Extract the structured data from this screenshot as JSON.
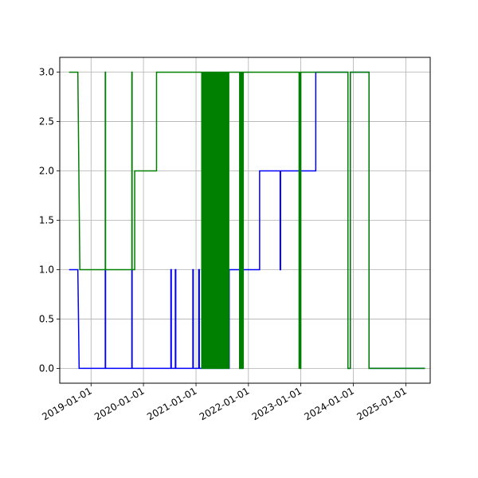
{
  "chart_data": {
    "type": "line",
    "title": "",
    "xlabel": "",
    "ylabel": "",
    "x_axis_type": "date",
    "xlim": [
      "2018-05-28",
      "2025-06-20"
    ],
    "ylim": [
      -0.15,
      3.15
    ],
    "grid": true,
    "legend": "none",
    "x_ticks": [
      "2019-01-01",
      "2020-01-01",
      "2021-01-01",
      "2022-01-01",
      "2023-01-01",
      "2024-01-01",
      "2025-01-01"
    ],
    "y_ticks": [
      "0.0",
      "0.5",
      "1.0",
      "1.5",
      "2.0",
      "2.5",
      "3.0"
    ],
    "series": [
      {
        "color": "#0000ff",
        "points": [
          [
            "2018-08-01",
            1
          ],
          [
            "2018-10-01",
            1
          ],
          [
            "2018-10-10",
            0
          ],
          [
            "2019-04-10",
            0
          ],
          [
            "2019-04-10",
            1
          ],
          [
            "2019-04-12",
            1
          ],
          [
            "2019-04-12",
            0
          ],
          [
            "2019-10-12",
            0
          ],
          [
            "2019-10-12",
            1
          ],
          [
            "2019-10-14",
            1
          ],
          [
            "2019-10-14",
            0
          ],
          [
            "2020-07-10",
            0
          ],
          [
            "2020-07-10",
            1
          ],
          [
            "2020-07-13",
            1
          ],
          [
            "2020-07-13",
            0
          ],
          [
            "2020-08-10",
            0
          ],
          [
            "2020-08-10",
            1
          ],
          [
            "2020-08-13",
            1
          ],
          [
            "2020-08-13",
            0
          ],
          [
            "2020-12-10",
            0
          ],
          [
            "2020-12-10",
            1
          ],
          [
            "2020-12-13",
            1
          ],
          [
            "2020-12-13",
            0
          ],
          [
            "2021-01-20",
            0
          ],
          [
            "2021-01-20",
            1
          ],
          [
            "2021-01-24",
            1
          ],
          [
            "2021-01-24",
            0
          ],
          [
            "2021-06-20",
            0
          ],
          [
            "2021-06-20",
            1
          ],
          [
            "2021-06-23",
            1
          ],
          [
            "2021-06-23",
            0
          ],
          [
            "2021-08-20",
            0
          ],
          [
            "2021-08-20",
            1
          ],
          [
            "2021-11-01",
            1
          ],
          [
            "2021-11-01",
            0
          ],
          [
            "2021-11-05",
            0
          ],
          [
            "2021-11-05",
            1
          ],
          [
            "2021-11-15",
            1
          ],
          [
            "2021-11-15",
            0
          ],
          [
            "2021-11-20",
            0
          ],
          [
            "2021-11-20",
            1
          ],
          [
            "2022-03-20",
            1
          ],
          [
            "2022-03-20",
            2
          ],
          [
            "2022-08-10",
            2
          ],
          [
            "2022-08-10",
            1
          ],
          [
            "2022-08-13",
            1
          ],
          [
            "2022-08-13",
            2
          ],
          [
            "2023-04-15",
            2
          ],
          [
            "2023-04-15",
            3
          ],
          [
            "2023-11-25",
            3
          ],
          [
            "2023-11-25",
            0
          ],
          [
            "2023-12-12",
            0
          ],
          [
            "2023-12-12",
            3
          ],
          [
            "2024-04-20",
            3
          ],
          [
            "2024-04-20",
            0
          ],
          [
            "2025-05-15",
            0
          ]
        ]
      },
      {
        "color": "#008000",
        "points": [
          [
            "2018-08-01",
            3
          ],
          [
            "2018-10-01",
            3
          ],
          [
            "2018-10-15",
            1
          ],
          [
            "2019-04-10",
            1
          ],
          [
            "2019-04-10",
            3
          ],
          [
            "2019-04-12",
            3
          ],
          [
            "2019-04-12",
            1
          ],
          [
            "2019-10-12",
            1
          ],
          [
            "2019-10-12",
            3
          ],
          [
            "2019-10-14",
            3
          ],
          [
            "2019-10-14",
            1
          ],
          [
            "2019-11-01",
            1
          ],
          [
            "2019-11-01",
            2
          ],
          [
            "2020-04-01",
            2
          ],
          [
            "2020-04-01",
            3
          ],
          [
            "2021-02-10",
            3
          ],
          [
            "2021-02-10",
            0
          ],
          [
            "2021-02-14",
            0
          ],
          [
            "2021-02-14",
            3
          ],
          [
            "2021-02-18",
            3
          ],
          [
            "2021-02-18",
            0
          ],
          [
            "2021-02-22",
            0
          ],
          [
            "2021-02-22",
            3
          ],
          [
            "2021-02-26",
            3
          ],
          [
            "2021-02-26",
            0
          ],
          [
            "2021-03-02",
            0
          ],
          [
            "2021-03-02",
            3
          ],
          [
            "2021-03-06",
            3
          ],
          [
            "2021-03-06",
            0
          ],
          [
            "2021-03-10",
            0
          ],
          [
            "2021-03-10",
            3
          ],
          [
            "2021-03-14",
            3
          ],
          [
            "2021-03-14",
            0
          ],
          [
            "2021-03-18",
            0
          ],
          [
            "2021-03-18",
            3
          ],
          [
            "2021-03-22",
            3
          ],
          [
            "2021-03-22",
            0
          ],
          [
            "2021-03-26",
            0
          ],
          [
            "2021-03-26",
            3
          ],
          [
            "2021-03-30",
            3
          ],
          [
            "2021-03-30",
            0
          ],
          [
            "2021-04-03",
            0
          ],
          [
            "2021-04-03",
            3
          ],
          [
            "2021-04-07",
            3
          ],
          [
            "2021-04-07",
            0
          ],
          [
            "2021-04-11",
            0
          ],
          [
            "2021-04-11",
            3
          ],
          [
            "2021-04-15",
            3
          ],
          [
            "2021-04-15",
            0
          ],
          [
            "2021-04-19",
            0
          ],
          [
            "2021-04-19",
            3
          ],
          [
            "2021-04-23",
            3
          ],
          [
            "2021-04-23",
            0
          ],
          [
            "2021-04-27",
            0
          ],
          [
            "2021-04-27",
            3
          ],
          [
            "2021-05-01",
            3
          ],
          [
            "2021-05-01",
            0
          ],
          [
            "2021-05-05",
            0
          ],
          [
            "2021-05-05",
            3
          ],
          [
            "2021-05-09",
            3
          ],
          [
            "2021-05-09",
            0
          ],
          [
            "2021-05-13",
            0
          ],
          [
            "2021-05-13",
            3
          ],
          [
            "2021-05-17",
            3
          ],
          [
            "2021-05-17",
            0
          ],
          [
            "2021-05-21",
            0
          ],
          [
            "2021-05-21",
            3
          ],
          [
            "2021-05-25",
            3
          ],
          [
            "2021-05-25",
            0
          ],
          [
            "2021-05-29",
            0
          ],
          [
            "2021-05-29",
            3
          ],
          [
            "2021-06-02",
            3
          ],
          [
            "2021-06-02",
            0
          ],
          [
            "2021-06-06",
            0
          ],
          [
            "2021-06-06",
            3
          ],
          [
            "2021-06-10",
            3
          ],
          [
            "2021-06-10",
            0
          ],
          [
            "2021-06-14",
            0
          ],
          [
            "2021-06-14",
            3
          ],
          [
            "2021-06-18",
            3
          ],
          [
            "2021-06-18",
            0
          ],
          [
            "2021-06-22",
            0
          ],
          [
            "2021-06-22",
            3
          ],
          [
            "2021-06-26",
            3
          ],
          [
            "2021-06-26",
            0
          ],
          [
            "2021-06-30",
            0
          ],
          [
            "2021-06-30",
            3
          ],
          [
            "2021-07-04",
            3
          ],
          [
            "2021-07-04",
            0
          ],
          [
            "2021-07-08",
            0
          ],
          [
            "2021-07-08",
            3
          ],
          [
            "2021-07-12",
            3
          ],
          [
            "2021-07-12",
            0
          ],
          [
            "2021-07-16",
            0
          ],
          [
            "2021-07-16",
            3
          ],
          [
            "2021-07-20",
            3
          ],
          [
            "2021-07-20",
            0
          ],
          [
            "2021-07-24",
            0
          ],
          [
            "2021-07-24",
            3
          ],
          [
            "2021-07-28",
            3
          ],
          [
            "2021-07-28",
            0
          ],
          [
            "2021-08-01",
            0
          ],
          [
            "2021-08-01",
            3
          ],
          [
            "2021-08-05",
            3
          ],
          [
            "2021-08-05",
            0
          ],
          [
            "2021-08-09",
            0
          ],
          [
            "2021-08-09",
            3
          ],
          [
            "2021-08-13",
            3
          ],
          [
            "2021-08-13",
            0
          ],
          [
            "2021-08-17",
            0
          ],
          [
            "2021-08-17",
            3
          ],
          [
            "2021-11-01",
            3
          ],
          [
            "2021-11-01",
            0
          ],
          [
            "2021-11-05",
            0
          ],
          [
            "2021-11-05",
            3
          ],
          [
            "2021-11-08",
            3
          ],
          [
            "2021-11-08",
            0
          ],
          [
            "2021-11-11",
            0
          ],
          [
            "2021-11-11",
            3
          ],
          [
            "2021-11-15",
            3
          ],
          [
            "2021-11-15",
            0
          ],
          [
            "2021-11-20",
            0
          ],
          [
            "2021-11-20",
            3
          ],
          [
            "2021-11-23",
            3
          ],
          [
            "2021-11-23",
            0
          ],
          [
            "2021-11-26",
            0
          ],
          [
            "2021-11-26",
            3
          ],
          [
            "2022-12-20",
            3
          ],
          [
            "2022-12-20",
            0
          ],
          [
            "2022-12-25",
            0
          ],
          [
            "2022-12-25",
            3
          ],
          [
            "2022-12-28",
            3
          ],
          [
            "2022-12-28",
            0
          ],
          [
            "2023-01-01",
            0
          ],
          [
            "2023-01-01",
            3
          ],
          [
            "2023-11-25",
            3
          ],
          [
            "2023-11-25",
            0
          ],
          [
            "2023-12-12",
            0
          ],
          [
            "2023-12-12",
            3
          ],
          [
            "2024-04-20",
            3
          ],
          [
            "2024-04-20",
            0
          ],
          [
            "2025-05-15",
            0
          ]
        ]
      }
    ]
  }
}
